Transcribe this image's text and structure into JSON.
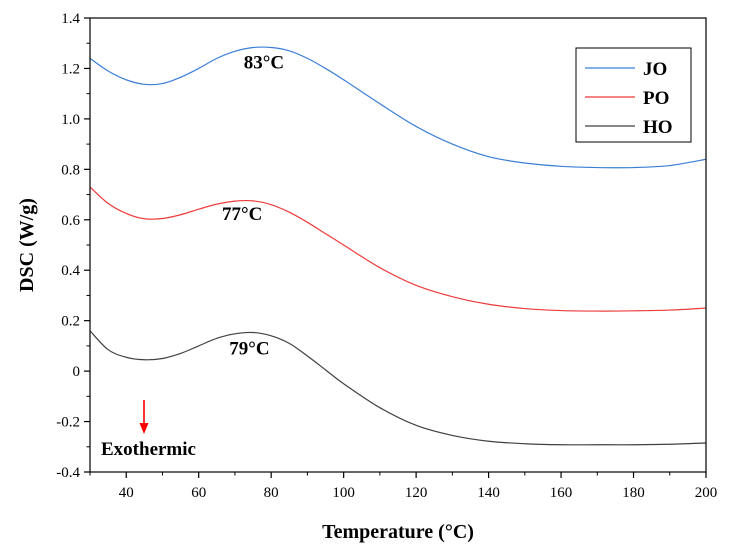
{
  "chart_data": {
    "type": "line",
    "title": "",
    "xlabel": "Temperature (°C)",
    "ylabel": "DSC (W/g)",
    "xlim": [
      30,
      200
    ],
    "ylim": [
      -0.4,
      1.4
    ],
    "xticks": [
      40,
      60,
      80,
      100,
      120,
      140,
      160,
      180,
      200
    ],
    "yticks": [
      -0.4,
      -0.2,
      0,
      0.2,
      0.4,
      0.6,
      0.8,
      1.0,
      1.2,
      1.4
    ],
    "ytick_labels": [
      "-0.4",
      "-0.2",
      "0",
      "0.2",
      "0.4",
      "0.6",
      "0.8",
      "1.0",
      "1.2",
      "1.4"
    ],
    "xtick_labels": [
      "40",
      "60",
      "80",
      "100",
      "120",
      "140",
      "160",
      "180",
      "200"
    ],
    "grid": false,
    "legend_position": "top-right",
    "series": [
      {
        "name": "JO",
        "color": "#3a7fd5",
        "x": [
          30,
          35,
          40,
          45,
          50,
          55,
          60,
          65,
          70,
          75,
          80,
          85,
          90,
          95,
          100,
          110,
          120,
          130,
          140,
          150,
          160,
          170,
          180,
          190,
          200
        ],
        "y": [
          1.24,
          1.19,
          1.155,
          1.137,
          1.14,
          1.165,
          1.2,
          1.24,
          1.268,
          1.283,
          1.283,
          1.27,
          1.24,
          1.2,
          1.155,
          1.06,
          0.97,
          0.9,
          0.85,
          0.825,
          0.812,
          0.807,
          0.807,
          0.815,
          0.84
        ]
      },
      {
        "name": "PO",
        "color": "#ee3b3b",
        "x": [
          30,
          35,
          40,
          45,
          50,
          55,
          60,
          65,
          70,
          75,
          80,
          85,
          90,
          95,
          100,
          110,
          120,
          130,
          140,
          150,
          160,
          170,
          180,
          190,
          200
        ],
        "y": [
          0.73,
          0.665,
          0.625,
          0.604,
          0.605,
          0.62,
          0.642,
          0.662,
          0.674,
          0.675,
          0.66,
          0.63,
          0.59,
          0.545,
          0.5,
          0.41,
          0.34,
          0.295,
          0.265,
          0.248,
          0.24,
          0.238,
          0.239,
          0.242,
          0.25
        ]
      },
      {
        "name": "HO",
        "color": "#404040",
        "x": [
          30,
          35,
          40,
          45,
          50,
          55,
          60,
          65,
          70,
          75,
          80,
          85,
          90,
          95,
          100,
          110,
          120,
          130,
          140,
          150,
          160,
          170,
          180,
          190,
          200
        ],
        "y": [
          0.16,
          0.085,
          0.055,
          0.045,
          0.05,
          0.07,
          0.1,
          0.13,
          0.148,
          0.153,
          0.14,
          0.11,
          0.06,
          0.005,
          -0.05,
          -0.145,
          -0.215,
          -0.255,
          -0.278,
          -0.288,
          -0.292,
          -0.292,
          -0.292,
          -0.29,
          -0.285
        ]
      }
    ],
    "annotations": [
      {
        "text": "83°C",
        "x": 78,
        "y": 1.2
      },
      {
        "text": "77°C",
        "x": 72,
        "y": 0.6
      },
      {
        "text": "79°C",
        "x": 74,
        "y": 0.065
      }
    ],
    "exothermic_label": "Exothermic",
    "exothermic_arrow_color": "#ff0000"
  }
}
